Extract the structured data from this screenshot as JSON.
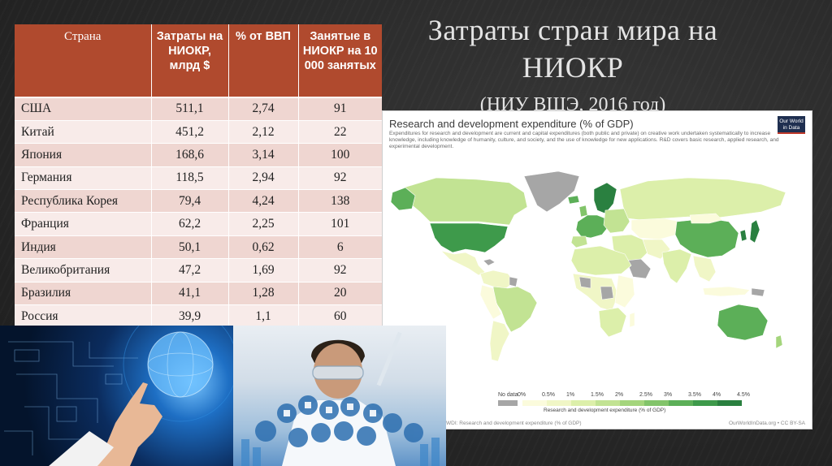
{
  "slide": {
    "title": "Затраты стран мира на НИОКР",
    "subtitle": "(НИУ ВШЭ, 2016 год)"
  },
  "table": {
    "headers": [
      "Страна",
      "Затраты на НИОКР, млрд $",
      "% от ВВП",
      "Занятые в НИОКР на 10 000 занятых"
    ],
    "rows": [
      {
        "country": "США",
        "spend": "511,1",
        "gdp": "2,74",
        "staff": "91"
      },
      {
        "country": "Китай",
        "spend": "451,2",
        "gdp": "2,12",
        "staff": "22"
      },
      {
        "country": "Япония",
        "spend": "168,6",
        "gdp": "3,14",
        "staff": "100"
      },
      {
        "country": "Германия",
        "spend": "118,5",
        "gdp": "2,94",
        "staff": "92"
      },
      {
        "country": "Республика Корея",
        "spend": "79,4",
        "gdp": "4,24",
        "staff": "138"
      },
      {
        "country": "Франция",
        "spend": "62,2",
        "gdp": "2,25",
        "staff": "101"
      },
      {
        "country": "Индия",
        "spend": "50,1",
        "gdp": "0,62",
        "staff": "6"
      },
      {
        "country": "Великобритания",
        "spend": "47,2",
        "gdp": "1,69",
        "staff": "92"
      },
      {
        "country": "Бразилия",
        "spend": "41,1",
        "gdp": "1,28",
        "staff": "20"
      },
      {
        "country": "Россия",
        "spend": "39,9",
        "gdp": "1,1",
        "staff": "60"
      }
    ]
  },
  "map": {
    "title": "Research and development expenditure (% of GDP)",
    "description": "Expenditures for research and development are current and capital expenditures (both public and private) on creative work undertaken systematically to increase knowledge, including knowledge of humanity, culture, and society, and the use of knowledge for new applications. R&D covers basic research, applied research, and experimental development.",
    "logo_line1": "Our World",
    "logo_line2": "in Data",
    "legend_no_data": "No data",
    "legend_ticks": [
      "0%",
      "0.5%",
      "1%",
      "1.5%",
      "2%",
      "2.5%",
      "3%",
      "3.5%",
      "4%",
      "4.5%"
    ],
    "legend_axis_label": "Research and development expenditure (% of GDP)",
    "source": "WDI: Research and development expenditure (% of GDP)",
    "license": "OurWorldInData.org • CC BY-SA",
    "colors": {
      "no_data": "#a6a6a6",
      "scale": [
        "#fbfbdc",
        "#f0f6c6",
        "#dcefaa",
        "#c2e393",
        "#a4d57c",
        "#82c46a",
        "#5caf58",
        "#3e9a4b",
        "#2a8040"
      ]
    }
  }
}
